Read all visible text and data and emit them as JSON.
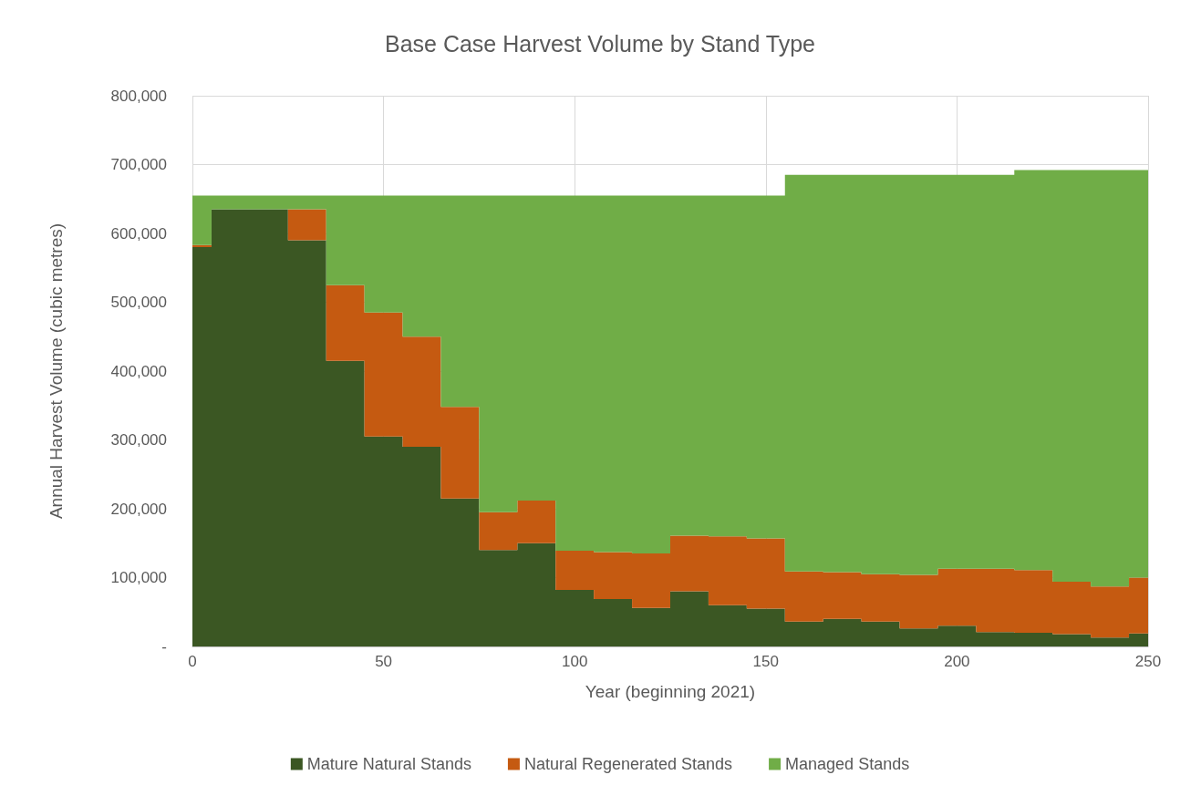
{
  "chart_data": {
    "type": "area",
    "title": "Base Case Harvest Volume by Stand Type",
    "xlabel": "Year (beginning 2021)",
    "ylabel": "Annual Harvest Volume (cubic metres)",
    "x": [
      0,
      10,
      20,
      30,
      40,
      50,
      60,
      70,
      80,
      90,
      100,
      110,
      120,
      130,
      140,
      150,
      160,
      170,
      180,
      190,
      200,
      210,
      220,
      230,
      240,
      250
    ],
    "stacked": true,
    "series": [
      {
        "name": "Mature Natural Stands",
        "color": "#3b5723",
        "values": [
          580000,
          635000,
          635000,
          590000,
          415000,
          305000,
          290000,
          215000,
          140000,
          150000,
          82000,
          69000,
          56000,
          80000,
          60000,
          55000,
          36000,
          40000,
          36000,
          26000,
          30000,
          21000,
          20000,
          18000,
          13000,
          19000
        ]
      },
      {
        "name": "Natural Regenerated Stands",
        "color": "#c55a11",
        "values": [
          3000,
          0,
          0,
          45000,
          110000,
          180000,
          160000,
          133000,
          55000,
          62000,
          57000,
          68000,
          79000,
          81000,
          100000,
          102000,
          73000,
          68000,
          69000,
          78000,
          83000,
          92000,
          91000,
          76000,
          74000,
          81000
        ]
      },
      {
        "name": "Managed Stands",
        "color": "#70ad47",
        "values": [
          72000,
          20000,
          20000,
          20000,
          130000,
          170000,
          205000,
          307000,
          460000,
          443000,
          516000,
          518000,
          520000,
          494000,
          495000,
          498000,
          576000,
          577000,
          580000,
          581000,
          572000,
          572000,
          581000,
          598000,
          605000,
          592000
        ]
      }
    ],
    "xlim": [
      0,
      250
    ],
    "xticks": [
      0,
      50,
      100,
      150,
      200,
      250
    ],
    "ylim": [
      0,
      800000
    ],
    "yticks": [
      {
        "value": 0,
        "label": "-"
      },
      {
        "value": 100000,
        "label": "100,000"
      },
      {
        "value": 200000,
        "label": "200,000"
      },
      {
        "value": 300000,
        "label": "300,000"
      },
      {
        "value": 400000,
        "label": "400,000"
      },
      {
        "value": 500000,
        "label": "500,000"
      },
      {
        "value": 600000,
        "label": "600,000"
      },
      {
        "value": 700000,
        "label": "700,000"
      },
      {
        "value": 800000,
        "label": "800,000"
      }
    ],
    "grid": true,
    "legend": "bottom",
    "marker": "none"
  }
}
